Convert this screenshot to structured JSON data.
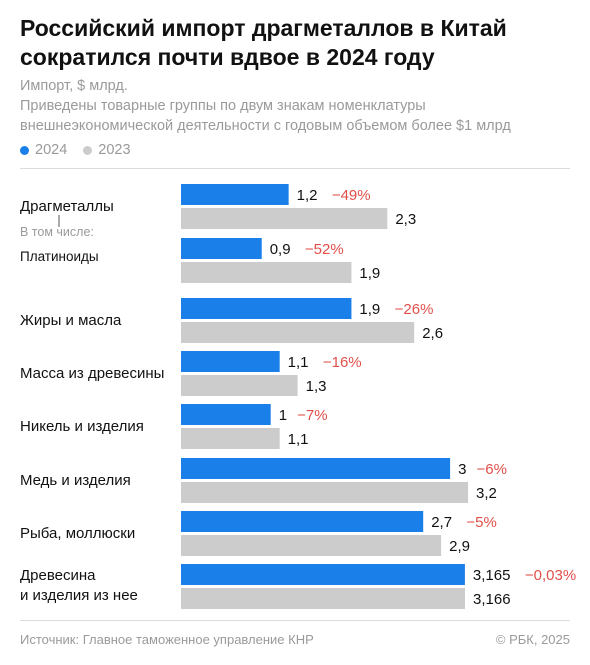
{
  "title": "Российский импорт драгметаллов в Китай сократился почти вдвое в 2024 году",
  "subtitle_unit": "Импорт, $ млрд.",
  "subtitle_note": "Приведены товарные группы по двум знакам номенклатуры внешнеэкономической деятельности с годовым объемом более $1 млрд",
  "legend": [
    {
      "label": "2024",
      "color": "#1a7fe8"
    },
    {
      "label": "2023",
      "color": "#cccccc"
    }
  ],
  "footer": {
    "source": "Источник: Главное таможенное управление КНР",
    "copyright": "© РБК, 2025"
  },
  "colors": {
    "series_2024": "#1a7fe8",
    "series_2023": "#cccccc",
    "change": "#e0504a"
  },
  "chart_data": {
    "type": "bar",
    "orientation": "horizontal",
    "categories": [
      "Драгметаллы",
      "Платиноиды",
      "Жиры и масла",
      "Масса из древесины",
      "Никель и изделия",
      "Медь и изделия",
      "Рыба, моллюски",
      "Древесина и изделия из нее"
    ],
    "sublabel": "В том числе:",
    "series": [
      {
        "name": "2024",
        "values": [
          1.2,
          0.9,
          1.9,
          1.1,
          1,
          3,
          2.7,
          3.165
        ],
        "labels": [
          "1,2",
          "0,9",
          "1,9",
          "1,1",
          "1",
          "3",
          "2,7",
          "3,165"
        ]
      },
      {
        "name": "2023",
        "values": [
          2.3,
          1.9,
          2.6,
          1.3,
          1.1,
          3.2,
          2.9,
          3.166
        ],
        "labels": [
          "2,3",
          "1,9",
          "2,6",
          "1,3",
          "1,1",
          "3,2",
          "2,9",
          "3,166"
        ]
      }
    ],
    "changes": [
      "−49%",
      "−52%",
      "−26%",
      "−16%",
      "−7%",
      "−6%",
      "−5%",
      "−0,03%"
    ],
    "xlim": [
      0,
      3.166
    ]
  }
}
